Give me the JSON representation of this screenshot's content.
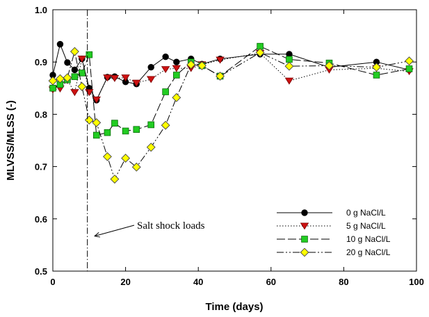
{
  "chart_data": {
    "type": "line",
    "xlabel": "Time (days)",
    "ylabel": "MLVSS/MLSS (-)",
    "xlim": [
      0,
      100
    ],
    "ylim": [
      0.5,
      1.0
    ],
    "xticks": [
      0,
      20,
      40,
      60,
      80,
      100
    ],
    "yticks": [
      0.5,
      0.6,
      0.7,
      0.8,
      0.9,
      1.0
    ],
    "ytick_labels": [
      "0.5",
      "0.6",
      "0.7",
      "0.8",
      "0.9",
      "1.0"
    ],
    "grid": false,
    "legend_position": "bottom-right",
    "vline_x": 9.5,
    "annotation": {
      "text": "Salt shock loads",
      "arrow_to": [
        11.5,
        0.567
      ]
    },
    "series": [
      {
        "name": "0 g NaCl/L",
        "marker": "circle",
        "marker_color": "#000000",
        "dash": "solid",
        "x": [
          0,
          2,
          4,
          6,
          8,
          10,
          12,
          15,
          17,
          20,
          23,
          27,
          31,
          34,
          38,
          41,
          46,
          57,
          65,
          76,
          89,
          98
        ],
        "y": [
          0.875,
          0.934,
          0.899,
          0.885,
          0.906,
          0.85,
          0.827,
          0.871,
          0.872,
          0.862,
          0.858,
          0.89,
          0.91,
          0.9,
          0.906,
          0.896,
          0.906,
          0.915,
          0.915,
          0.89,
          0.9,
          0.885
        ]
      },
      {
        "name": "5 g NaCl/L",
        "marker": "triangle-down",
        "marker_color": "#cc1111",
        "dash": "dotted",
        "x": [
          0,
          2,
          4,
          6,
          8,
          10,
          12,
          15,
          17,
          20,
          23,
          27,
          31,
          34,
          38,
          41,
          46,
          57,
          65,
          76,
          89,
          98
        ],
        "y": [
          0.847,
          0.849,
          0.865,
          0.842,
          0.906,
          0.842,
          0.828,
          0.87,
          0.869,
          0.87,
          0.86,
          0.867,
          0.886,
          0.888,
          0.888,
          0.895,
          0.904,
          0.917,
          0.864,
          0.885,
          0.888,
          0.882
        ]
      },
      {
        "name": "10 g NaCl/L",
        "marker": "square",
        "marker_color": "#22cc22",
        "dash": "long-dash",
        "x": [
          0,
          2,
          4,
          6,
          8,
          10,
          12,
          15,
          17,
          20,
          23,
          27,
          31,
          34,
          38,
          41,
          46,
          57,
          65,
          76,
          89,
          98
        ],
        "y": [
          0.85,
          0.857,
          0.866,
          0.872,
          0.879,
          0.914,
          0.76,
          0.765,
          0.783,
          0.768,
          0.771,
          0.78,
          0.843,
          0.875,
          0.9,
          0.893,
          0.873,
          0.93,
          0.905,
          0.898,
          0.875,
          0.887
        ]
      },
      {
        "name": "20 g NaCl/L",
        "marker": "diamond",
        "marker_color": "#ffff00",
        "dash": "dash-dot-dot",
        "x": [
          0,
          2,
          4,
          6,
          8,
          10,
          12,
          15,
          17,
          20,
          23,
          27,
          31,
          34,
          38,
          41,
          46,
          57,
          65,
          76,
          89,
          98
        ],
        "y": [
          0.864,
          0.868,
          0.87,
          0.92,
          0.853,
          0.789,
          0.784,
          0.719,
          0.676,
          0.716,
          0.699,
          0.737,
          0.779,
          0.832,
          0.895,
          0.893,
          0.873,
          0.918,
          0.892,
          0.893,
          0.89,
          0.902
        ]
      }
    ]
  }
}
